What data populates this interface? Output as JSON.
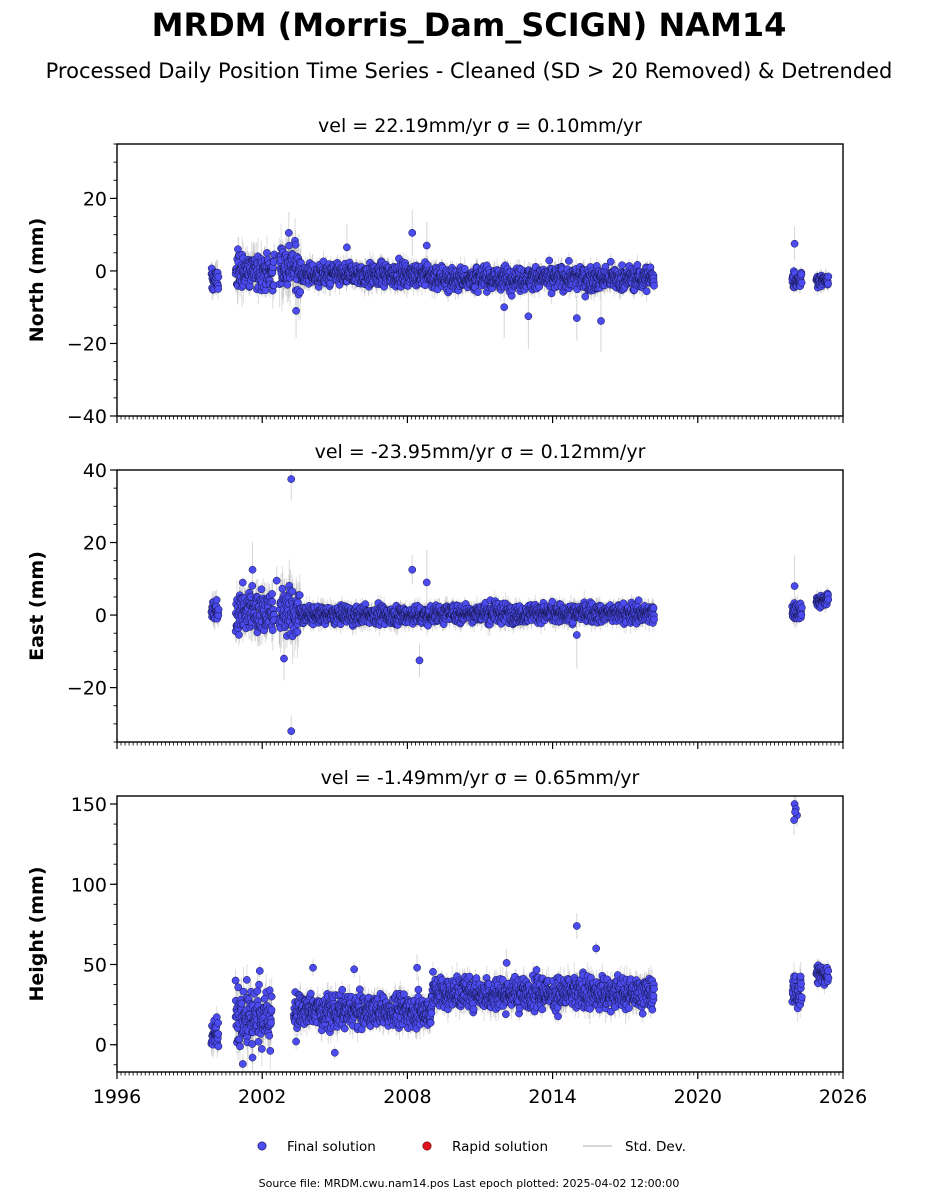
{
  "figure": {
    "title": "MRDM (Morris_Dam_SCIGN) NAM14",
    "subtitle": "Processed Daily Position Time Series - Cleaned (SD > 20 Removed) & Detrended",
    "footer": "Source file: MRDM.cwu.nam14.pos  Last epoch plotted: 2025-04-02 12:00:00"
  },
  "legend": {
    "final_label": "Final solution",
    "rapid_label": "Rapid solution",
    "std_label": "Std. Dev."
  },
  "colors": {
    "final": "#4b4bef",
    "final_edge": "#15154a",
    "rapid": "#e0141e",
    "std": "#8a8a8a"
  },
  "chart_data": [
    {
      "type": "scatter",
      "panel": "north",
      "title_text": "vel = 22.19mm/yr   σ = 0.10mm/yr",
      "velocity_mm_yr": 22.19,
      "sigma_mm_yr": 0.1,
      "ylabel": "North (mm)",
      "xlim": [
        1996,
        2026
      ],
      "ylim": [
        -40,
        35
      ],
      "yticks": [
        20,
        0,
        -20,
        -40
      ],
      "ytick_labels": [
        "20",
        "0",
        "−20",
        "−40"
      ],
      "segments": [
        {
          "start": 1999.9,
          "end": 2000.2,
          "mean": -2.5,
          "spread": 1.6,
          "err": 2.5
        },
        {
          "start": 2000.9,
          "end": 2002.5,
          "mean": 0,
          "spread": 2.4,
          "err": 3.5
        },
        {
          "start": 2002.7,
          "end": 2003.6,
          "mean": 1,
          "spread": 3.0,
          "err": 5
        },
        {
          "start": 2003.6,
          "end": 2009.0,
          "mean": -1,
          "spread": 1.5,
          "err": 2.2
        },
        {
          "start": 2009.0,
          "end": 2018.2,
          "mean": -2,
          "spread": 1.6,
          "err": 2
        },
        {
          "start": 2023.9,
          "end": 2024.3,
          "mean": -2.5,
          "spread": 1.2,
          "err": 1.8
        },
        {
          "start": 2024.9,
          "end": 2025.4,
          "mean": -2.5,
          "spread": 0.8,
          "err": 1.5
        }
      ],
      "outliers": [
        {
          "x": 2003.1,
          "y": 10.5
        },
        {
          "x": 2003.4,
          "y": -11
        },
        {
          "x": 2005.5,
          "y": 6.5
        },
        {
          "x": 2008.2,
          "y": 10.5
        },
        {
          "x": 2008.8,
          "y": 7
        },
        {
          "x": 2012.0,
          "y": -10
        },
        {
          "x": 2013.0,
          "y": -12.5
        },
        {
          "x": 2015.0,
          "y": -13
        },
        {
          "x": 2016.0,
          "y": -13.8
        },
        {
          "x": 2024.0,
          "y": 7.5
        }
      ]
    },
    {
      "type": "scatter",
      "panel": "east",
      "title_text": "vel = -23.95mm/yr   σ = 0.12mm/yr",
      "velocity_mm_yr": -23.95,
      "sigma_mm_yr": 0.12,
      "ylabel": "East (mm)",
      "xlim": [
        1996,
        2026
      ],
      "ylim": [
        -35,
        40
      ],
      "yticks": [
        40,
        20,
        0,
        -20
      ],
      "ytick_labels": [
        "40",
        "20",
        "0",
        "−20"
      ],
      "segments": [
        {
          "start": 1999.9,
          "end": 2000.2,
          "mean": 1,
          "spread": 1.5,
          "err": 2.5
        },
        {
          "start": 2000.9,
          "end": 2002.5,
          "mean": 1,
          "spread": 2.8,
          "err": 4
        },
        {
          "start": 2002.7,
          "end": 2003.6,
          "mean": 1,
          "spread": 3.0,
          "err": 5
        },
        {
          "start": 2003.6,
          "end": 2009.0,
          "mean": 0,
          "spread": 1.2,
          "err": 2
        },
        {
          "start": 2009.0,
          "end": 2018.2,
          "mean": 0.5,
          "spread": 1.3,
          "err": 2
        },
        {
          "start": 2023.9,
          "end": 2024.3,
          "mean": 1.5,
          "spread": 1.5,
          "err": 2
        },
        {
          "start": 2024.9,
          "end": 2025.4,
          "mean": 4,
          "spread": 0.8,
          "err": 1.5
        }
      ],
      "outliers": [
        {
          "x": 2003.2,
          "y": 37.5
        },
        {
          "x": 2003.2,
          "y": -32
        },
        {
          "x": 2001.6,
          "y": 12.5
        },
        {
          "x": 2002.6,
          "y": 9.5
        },
        {
          "x": 2002.9,
          "y": -12
        },
        {
          "x": 2008.2,
          "y": 12.5
        },
        {
          "x": 2008.8,
          "y": 9
        },
        {
          "x": 2008.5,
          "y": -12.5
        },
        {
          "x": 2015.0,
          "y": -5.5
        },
        {
          "x": 2024.0,
          "y": 8
        }
      ]
    },
    {
      "type": "scatter",
      "panel": "height",
      "title_text": "vel = -1.49mm/yr   σ = 0.65mm/yr",
      "velocity_mm_yr": -1.49,
      "sigma_mm_yr": 0.65,
      "ylabel": "Height (mm)",
      "xlim": [
        1996,
        2026
      ],
      "xticks": [
        1996,
        2002,
        2008,
        2014,
        2020,
        2026
      ],
      "xtick_labels": [
        "1996",
        "2002",
        "2008",
        "2014",
        "2020",
        "2026"
      ],
      "ylim": [
        -17,
        155
      ],
      "yticks": [
        150,
        100,
        50,
        0
      ],
      "ytick_labels": [
        "150",
        "100",
        "50",
        "0"
      ],
      "segments": [
        {
          "start": 1999.9,
          "end": 2000.2,
          "mean": 7,
          "spread": 4,
          "err": 6
        },
        {
          "start": 2000.9,
          "end": 2002.4,
          "mean": 18,
          "spread": 9,
          "err": 10
        },
        {
          "start": 2003.3,
          "end": 2009.0,
          "mean": 21,
          "spread": 5,
          "err": 6
        },
        {
          "start": 2009.0,
          "end": 2018.2,
          "mean": 32,
          "spread": 5,
          "err": 6
        },
        {
          "start": 2023.9,
          "end": 2024.3,
          "mean": 33,
          "spread": 6,
          "err": 6
        },
        {
          "start": 2024.9,
          "end": 2025.4,
          "mean": 44,
          "spread": 3,
          "err": 4
        }
      ],
      "outliers": [
        {
          "x": 2024.0,
          "y": 150
        },
        {
          "x": 2024.05,
          "y": 147
        },
        {
          "x": 2024.1,
          "y": 143
        },
        {
          "x": 2023.98,
          "y": 140
        },
        {
          "x": 2024.02,
          "y": 145
        },
        {
          "x": 2015.0,
          "y": 74
        },
        {
          "x": 2015.8,
          "y": 60
        },
        {
          "x": 2004.1,
          "y": 48
        },
        {
          "x": 2005.8,
          "y": 47
        },
        {
          "x": 2008.4,
          "y": 48
        },
        {
          "x": 2012.1,
          "y": 51
        },
        {
          "x": 2005.0,
          "y": -5
        },
        {
          "x": 2003.4,
          "y": 2
        },
        {
          "x": 2001.2,
          "y": -12
        },
        {
          "x": 2001.6,
          "y": -8
        },
        {
          "x": 2001.9,
          "y": 46
        },
        {
          "x": 2000.9,
          "y": 40
        }
      ]
    }
  ]
}
